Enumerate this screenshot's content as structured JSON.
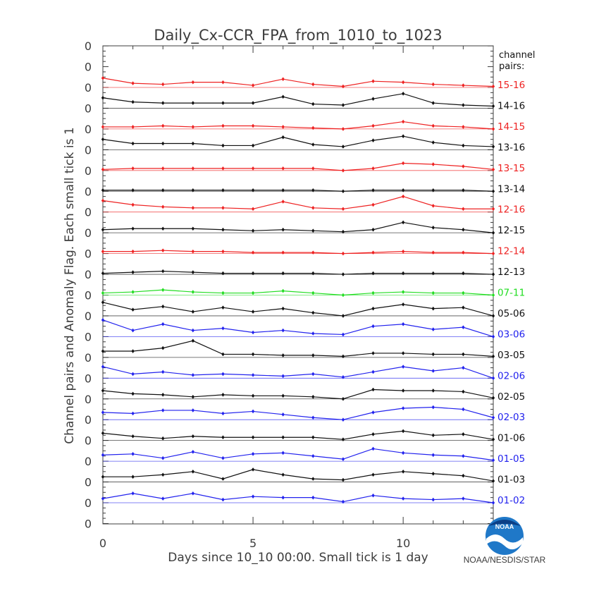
{
  "chart_data": {
    "type": "line",
    "title": "Daily_Cx-CCR_FPA_from_1010_to_1023",
    "xlabel": "Days since 10_10 00:00. Small tick is 1 day",
    "ylabel": "Channel pairs and Anomaly Flag. Each small tick is 1",
    "xlim": [
      0,
      13
    ],
    "x_ticks": [
      "0",
      "5",
      "10"
    ],
    "x": [
      0,
      1,
      2,
      3,
      4,
      5,
      6,
      7,
      8,
      9,
      10,
      11,
      12,
      13
    ],
    "y_tick_label": "0",
    "legend_title": "channel pairs:",
    "series": [
      {
        "name": "01-02",
        "color": "#2222ee",
        "baseline": 0,
        "values": [
          0.2,
          0.45,
          0.2,
          0.45,
          0.15,
          0.3,
          0.25,
          0.25,
          0.05,
          0.35,
          0.2,
          0.15,
          0.2,
          0.0
        ]
      },
      {
        "name": "01-03",
        "color": "#111111",
        "baseline": 1,
        "values": [
          0.25,
          0.25,
          0.35,
          0.5,
          0.15,
          0.6,
          0.35,
          0.15,
          0.1,
          0.35,
          0.5,
          0.4,
          0.3,
          0.05
        ]
      },
      {
        "name": "01-05",
        "color": "#2222ee",
        "baseline": 2,
        "values": [
          0.3,
          0.35,
          0.15,
          0.45,
          0.15,
          0.35,
          0.4,
          0.25,
          0.1,
          0.6,
          0.4,
          0.3,
          0.25,
          0.05
        ]
      },
      {
        "name": "01-06",
        "color": "#111111",
        "baseline": 3,
        "values": [
          0.35,
          0.2,
          0.1,
          0.2,
          0.15,
          0.15,
          0.15,
          0.15,
          0.05,
          0.3,
          0.45,
          0.25,
          0.3,
          0.05
        ]
      },
      {
        "name": "02-03",
        "color": "#2222ee",
        "baseline": 4,
        "values": [
          0.35,
          0.3,
          0.45,
          0.45,
          0.3,
          0.4,
          0.25,
          0.1,
          0.0,
          0.35,
          0.55,
          0.6,
          0.5,
          0.1
        ]
      },
      {
        "name": "02-05",
        "color": "#111111",
        "baseline": 5,
        "values": [
          0.4,
          0.25,
          0.2,
          0.1,
          0.2,
          0.15,
          0.15,
          0.1,
          0.0,
          0.45,
          0.4,
          0.4,
          0.35,
          0.05
        ]
      },
      {
        "name": "02-06",
        "color": "#2222ee",
        "baseline": 6,
        "values": [
          0.55,
          0.2,
          0.3,
          0.15,
          0.2,
          0.15,
          0.1,
          0.2,
          0.05,
          0.3,
          0.55,
          0.35,
          0.5,
          0.0
        ]
      },
      {
        "name": "03-05",
        "color": "#111111",
        "baseline": 7,
        "values": [
          0.3,
          0.3,
          0.45,
          0.8,
          0.15,
          0.15,
          0.1,
          0.1,
          0.05,
          0.2,
          0.2,
          0.15,
          0.15,
          0.05
        ]
      },
      {
        "name": "03-06",
        "color": "#2222ee",
        "baseline": 8,
        "values": [
          0.8,
          0.3,
          0.6,
          0.3,
          0.4,
          0.2,
          0.3,
          0.15,
          0.1,
          0.5,
          0.6,
          0.35,
          0.45,
          0.0
        ]
      },
      {
        "name": "05-06",
        "color": "#111111",
        "baseline": 9,
        "values": [
          0.65,
          0.3,
          0.45,
          0.2,
          0.4,
          0.2,
          0.35,
          0.15,
          0.0,
          0.35,
          0.55,
          0.35,
          0.4,
          0.0
        ]
      },
      {
        "name": "07-11",
        "color": "#22dd22",
        "baseline": 10,
        "values": [
          0.1,
          0.15,
          0.25,
          0.15,
          0.1,
          0.1,
          0.2,
          0.1,
          0.0,
          0.1,
          0.15,
          0.1,
          0.1,
          0.0
        ]
      },
      {
        "name": "12-13",
        "color": "#111111",
        "baseline": 11,
        "values": [
          0.05,
          0.1,
          0.15,
          0.1,
          0.05,
          0.05,
          0.05,
          0.05,
          0.0,
          0.05,
          0.05,
          0.05,
          0.05,
          0.0
        ]
      },
      {
        "name": "12-14",
        "color": "#ee2222",
        "baseline": 12,
        "values": [
          0.1,
          0.1,
          0.15,
          0.1,
          0.1,
          0.05,
          0.05,
          0.05,
          0.0,
          0.05,
          0.1,
          0.05,
          0.05,
          0.0
        ]
      },
      {
        "name": "12-15",
        "color": "#111111",
        "baseline": 13,
        "values": [
          0.15,
          0.2,
          0.2,
          0.2,
          0.15,
          0.1,
          0.15,
          0.1,
          0.05,
          0.15,
          0.5,
          0.25,
          0.15,
          0.0
        ]
      },
      {
        "name": "12-16",
        "color": "#ee2222",
        "baseline": 14,
        "values": [
          0.55,
          0.35,
          0.25,
          0.2,
          0.2,
          0.15,
          0.5,
          0.2,
          0.15,
          0.35,
          0.75,
          0.3,
          0.15,
          0.15
        ]
      },
      {
        "name": "13-14",
        "color": "#111111",
        "baseline": 15,
        "values": [
          0.05,
          0.05,
          0.05,
          0.05,
          0.05,
          0.05,
          0.05,
          0.05,
          0.0,
          0.05,
          0.05,
          0.05,
          0.05,
          0.0
        ]
      },
      {
        "name": "13-15",
        "color": "#ee2222",
        "baseline": 16,
        "values": [
          0.05,
          0.1,
          0.1,
          0.1,
          0.1,
          0.1,
          0.1,
          0.1,
          0.0,
          0.1,
          0.35,
          0.3,
          0.2,
          0.05
        ]
      },
      {
        "name": "13-16",
        "color": "#111111",
        "baseline": 17,
        "values": [
          0.5,
          0.3,
          0.3,
          0.3,
          0.2,
          0.2,
          0.6,
          0.25,
          0.15,
          0.45,
          0.65,
          0.35,
          0.2,
          0.15
        ]
      },
      {
        "name": "14-15",
        "color": "#ee2222",
        "baseline": 18,
        "values": [
          0.1,
          0.1,
          0.15,
          0.1,
          0.15,
          0.15,
          0.1,
          0.05,
          0.0,
          0.15,
          0.35,
          0.15,
          0.1,
          0.0
        ]
      },
      {
        "name": "14-16",
        "color": "#111111",
        "baseline": 19,
        "values": [
          0.5,
          0.3,
          0.25,
          0.25,
          0.25,
          0.25,
          0.55,
          0.2,
          0.15,
          0.45,
          0.7,
          0.25,
          0.15,
          0.1
        ]
      },
      {
        "name": "15-16",
        "color": "#ee2222",
        "baseline": 20,
        "values": [
          0.45,
          0.2,
          0.15,
          0.25,
          0.25,
          0.1,
          0.4,
          0.15,
          0.05,
          0.3,
          0.25,
          0.15,
          0.1,
          0.05
        ]
      }
    ],
    "grid": false
  },
  "logo": {
    "badge_text": "NOAA",
    "caption": "NOAA/NESDIS/STAR"
  },
  "colors": {
    "background": "#6c6c6c",
    "plot_background": "#ffffff",
    "axis": "#3c3c3c"
  }
}
